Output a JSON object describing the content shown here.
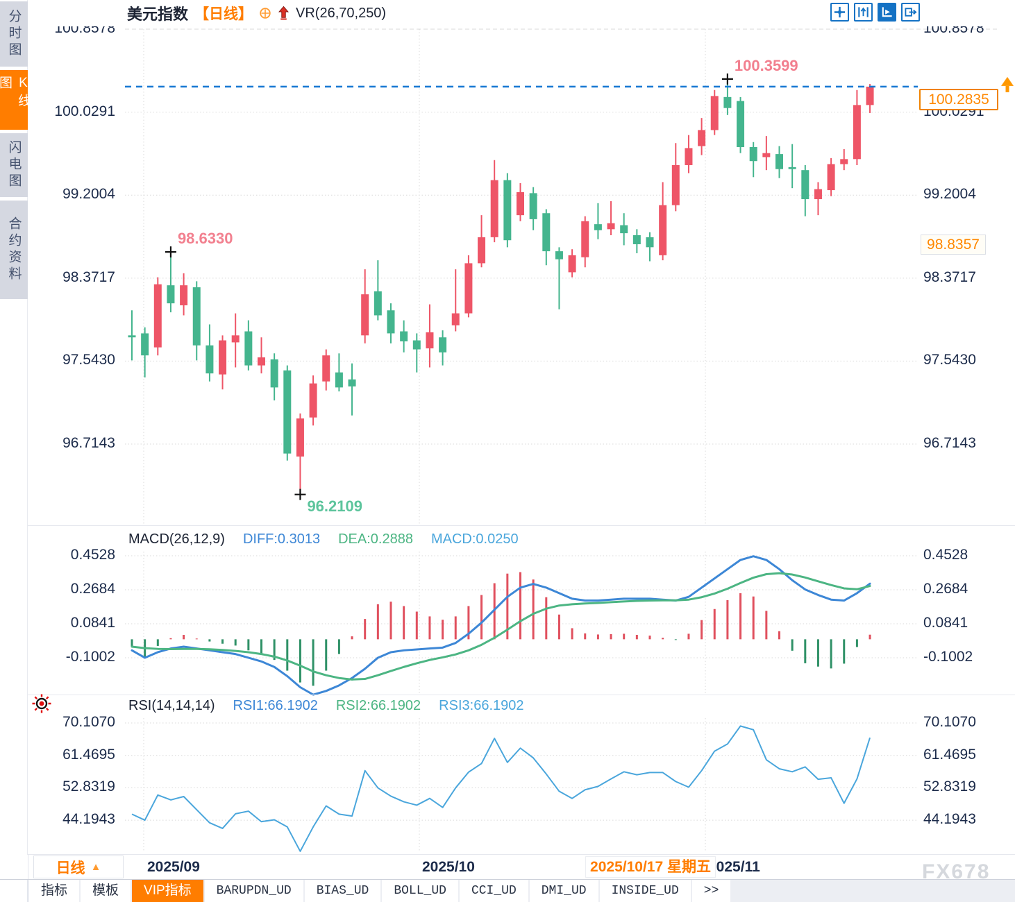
{
  "header": {
    "title": "美元指数",
    "period": "【日线】",
    "indicator": "VR(26,70,250)"
  },
  "sidebar": {
    "items": [
      {
        "label": "分时图",
        "active": false
      },
      {
        "label": "K线图",
        "active": true
      },
      {
        "label": "闪电图",
        "active": false
      },
      {
        "label": "合约资料",
        "active": false
      }
    ]
  },
  "toolbar": {
    "icons": [
      "move-crosshair",
      "scale-y-axis",
      "auto-scale",
      "pan-right"
    ]
  },
  "price_tags": {
    "current": "100.2835",
    "secondary": "98.8357"
  },
  "macd_header": {
    "name": "MACD(26,12,9)",
    "diff": "DIFF:0.3013",
    "dea": "DEA:0.2888",
    "macd": "MACD:0.0250"
  },
  "rsi_header": {
    "name": "RSI(14,14,14)",
    "rsi1": "RSI1:66.1902",
    "rsi2": "RSI2:66.1902",
    "rsi3": "RSI3:66.1902"
  },
  "x_axis": {
    "labels": [
      "2025/09",
      "2025/10",
      "2025/11"
    ],
    "tooltip": "2025/10/17 星期五"
  },
  "period_selector": {
    "label": "日线"
  },
  "bottom_tabs": [
    {
      "label": "指标",
      "active": false,
      "mono": false
    },
    {
      "label": "模板",
      "active": false,
      "mono": false
    },
    {
      "label": "VIP指标",
      "active": true,
      "mono": false
    },
    {
      "label": "BARUPDN_UD",
      "active": false,
      "mono": true
    },
    {
      "label": "BIAS_UD",
      "active": false,
      "mono": true
    },
    {
      "label": "BOLL_UD",
      "active": false,
      "mono": true
    },
    {
      "label": "CCI_UD",
      "active": false,
      "mono": true
    },
    {
      "label": "DMI_UD",
      "active": false,
      "mono": true
    },
    {
      "label": "INSIDE_UD",
      "active": false,
      "mono": true
    },
    {
      "label": ">>",
      "active": false,
      "mono": true
    }
  ],
  "watermark": "FX678",
  "colors": {
    "accent_orange": "#ff7d00",
    "candle_up": "#ee5567",
    "candle_down": "#44b58e",
    "macd_diff": "#3d87d6",
    "macd_dea": "#4cb583",
    "hist_up": "#e0505e",
    "hist_down": "#2f9167",
    "rsi_line": "#4aa6dc",
    "current_line": "#1677d2",
    "annotation_high": "#f2808f",
    "annotation_low": "#5cc49c",
    "axis_text": "#1c2b4a",
    "icon_blue": "#1472c4",
    "grid": "#d9d9d9",
    "cross_marker": "#111111",
    "price_arrow": "#ff9800"
  },
  "chart_data": [
    {
      "type": "candlestick",
      "title": "美元指数 日线",
      "y_ticks": [
        100.8578,
        100.0291,
        99.2004,
        98.3717,
        97.543,
        96.7143
      ],
      "x_tick_labels": [
        "2025/09",
        "2025/10",
        "2025/11"
      ],
      "current_price": 100.2835,
      "secondary_price": 98.8357,
      "candles": [
        [
          97.8,
          98.05,
          97.55,
          97.78
        ],
        [
          97.82,
          97.88,
          97.38,
          97.6
        ],
        [
          97.68,
          98.38,
          97.6,
          98.31
        ],
        [
          98.3,
          98.633,
          98.03,
          98.12
        ],
        [
          98.1,
          98.42,
          98.0,
          98.3
        ],
        [
          98.28,
          98.34,
          97.55,
          97.7
        ],
        [
          97.7,
          97.91,
          97.34,
          97.42
        ],
        [
          97.41,
          97.8,
          97.26,
          97.75
        ],
        [
          97.73,
          98.02,
          97.48,
          97.8
        ],
        [
          97.84,
          97.95,
          97.45,
          97.5
        ],
        [
          97.5,
          97.78,
          97.42,
          97.58
        ],
        [
          97.56,
          97.62,
          97.15,
          97.28
        ],
        [
          97.45,
          97.5,
          96.55,
          96.62
        ],
        [
          96.59,
          97.02,
          96.2109,
          96.97
        ],
        [
          96.98,
          97.4,
          96.9,
          97.32
        ],
        [
          97.34,
          97.66,
          97.25,
          97.6
        ],
        [
          97.43,
          97.62,
          97.24,
          97.28
        ],
        [
          97.36,
          97.52,
          97.0,
          97.29
        ],
        [
          97.8,
          98.46,
          97.72,
          98.21
        ],
        [
          98.24,
          98.55,
          97.95,
          98.0
        ],
        [
          98.05,
          98.12,
          97.72,
          97.82
        ],
        [
          97.84,
          97.95,
          97.63,
          97.74
        ],
        [
          97.75,
          97.82,
          97.43,
          97.66
        ],
        [
          97.67,
          98.11,
          97.48,
          97.83
        ],
        [
          97.78,
          97.85,
          97.5,
          97.63
        ],
        [
          97.9,
          98.46,
          97.84,
          98.02
        ],
        [
          98.02,
          98.6,
          97.98,
          98.52
        ],
        [
          98.52,
          99.0,
          98.48,
          98.78
        ],
        [
          98.78,
          99.55,
          98.73,
          99.35
        ],
        [
          99.35,
          99.42,
          98.68,
          98.75
        ],
        [
          99.0,
          99.32,
          98.94,
          99.23
        ],
        [
          99.22,
          99.28,
          98.85,
          98.96
        ],
        [
          99.02,
          99.06,
          98.5,
          98.64
        ],
        [
          98.64,
          98.68,
          98.06,
          98.56
        ],
        [
          98.43,
          98.66,
          98.38,
          98.6
        ],
        [
          98.58,
          98.99,
          98.48,
          98.94
        ],
        [
          98.91,
          99.12,
          98.76,
          98.85
        ],
        [
          98.86,
          99.14,
          98.8,
          98.92
        ],
        [
          98.9,
          99.02,
          98.7,
          98.82
        ],
        [
          98.8,
          98.86,
          98.62,
          98.71
        ],
        [
          98.78,
          98.83,
          98.54,
          98.68
        ],
        [
          98.6,
          99.33,
          98.55,
          99.1
        ],
        [
          99.1,
          99.72,
          99.04,
          99.5
        ],
        [
          99.5,
          99.8,
          99.42,
          99.67
        ],
        [
          99.69,
          99.97,
          99.6,
          99.85
        ],
        [
          99.85,
          100.25,
          99.8,
          100.19
        ],
        [
          100.18,
          100.3599,
          100.0,
          100.07
        ],
        [
          100.14,
          100.18,
          99.62,
          99.68
        ],
        [
          99.68,
          99.73,
          99.38,
          99.54
        ],
        [
          99.58,
          99.79,
          99.45,
          99.62
        ],
        [
          99.61,
          99.69,
          99.37,
          99.46
        ],
        [
          99.48,
          99.71,
          99.27,
          99.46
        ],
        [
          99.45,
          99.5,
          98.99,
          99.16
        ],
        [
          99.16,
          99.33,
          99.0,
          99.26
        ],
        [
          99.25,
          99.57,
          99.19,
          99.51
        ],
        [
          99.51,
          99.66,
          99.45,
          99.56
        ],
        [
          99.56,
          100.25,
          99.5,
          100.1
        ],
        [
          100.1,
          100.31,
          100.02,
          100.2835
        ]
      ],
      "annotations": [
        {
          "text": "100.3599",
          "index": 46,
          "pos": "above",
          "color": "#f2808f"
        },
        {
          "text": "98.6330",
          "index": 3,
          "pos": "above",
          "color": "#f2808f"
        },
        {
          "text": "96.2109",
          "index": 13,
          "pos": "below",
          "color": "#5cc49c"
        }
      ]
    },
    {
      "type": "line",
      "name": "MACD(26,12,9)",
      "y_ticks": [
        0.4528,
        0.2684,
        0.0841,
        -0.1002
      ],
      "series": [
        {
          "name": "DIFF",
          "values": [
            -0.06,
            -0.1,
            -0.07,
            -0.05,
            -0.04,
            -0.05,
            -0.06,
            -0.07,
            -0.08,
            -0.1,
            -0.12,
            -0.15,
            -0.2,
            -0.26,
            -0.3,
            -0.28,
            -0.25,
            -0.21,
            -0.16,
            -0.1,
            -0.07,
            -0.06,
            -0.055,
            -0.05,
            -0.045,
            -0.02,
            0.03,
            0.09,
            0.16,
            0.23,
            0.28,
            0.3,
            0.28,
            0.25,
            0.22,
            0.21,
            0.21,
            0.215,
            0.22,
            0.22,
            0.22,
            0.215,
            0.21,
            0.23,
            0.28,
            0.33,
            0.38,
            0.43,
            0.45,
            0.43,
            0.38,
            0.32,
            0.27,
            0.24,
            0.215,
            0.21,
            0.25,
            0.3013
          ]
        },
        {
          "name": "DEA",
          "values": [
            -0.04,
            -0.048,
            -0.052,
            -0.053,
            -0.052,
            -0.052,
            -0.054,
            -0.058,
            -0.063,
            -0.07,
            -0.08,
            -0.094,
            -0.115,
            -0.143,
            -0.174,
            -0.195,
            -0.21,
            -0.218,
            -0.215,
            -0.195,
            -0.172,
            -0.15,
            -0.13,
            -0.112,
            -0.098,
            -0.082,
            -0.06,
            -0.03,
            0.008,
            0.052,
            0.098,
            0.138,
            0.166,
            0.183,
            0.19,
            0.194,
            0.197,
            0.201,
            0.205,
            0.208,
            0.21,
            0.211,
            0.211,
            0.215,
            0.228,
            0.248,
            0.274,
            0.305,
            0.334,
            0.353,
            0.358,
            0.351,
            0.335,
            0.314,
            0.294,
            0.276,
            0.271,
            0.2888
          ]
        }
      ],
      "histogram_note": "MACD histogram = 2 * (DIFF - DEA)"
    },
    {
      "type": "line",
      "name": "RSI(14,14,14)",
      "y_ticks": [
        70.107,
        61.4695,
        52.8319,
        44.1943
      ],
      "values": [
        45.8,
        44.2,
        50.9,
        49.6,
        50.5,
        47.0,
        43.5,
        42.0,
        45.9,
        46.6,
        43.8,
        44.3,
        42.4,
        35.9,
        42.4,
        48.0,
        45.8,
        45.3,
        57.4,
        52.8,
        50.6,
        49.1,
        48.2,
        50.0,
        47.6,
        52.8,
        57.0,
        59.3,
        66.0,
        59.6,
        63.4,
        60.8,
        56.5,
        51.9,
        50.0,
        52.3,
        53.2,
        55.2,
        57.1,
        56.3,
        56.9,
        56.9,
        54.5,
        53.0,
        57.4,
        62.6,
        64.5,
        69.3,
        68.3,
        60.3,
        57.9,
        57.1,
        58.4,
        55.1,
        55.5,
        48.7,
        55.2,
        66.1902
      ]
    }
  ]
}
